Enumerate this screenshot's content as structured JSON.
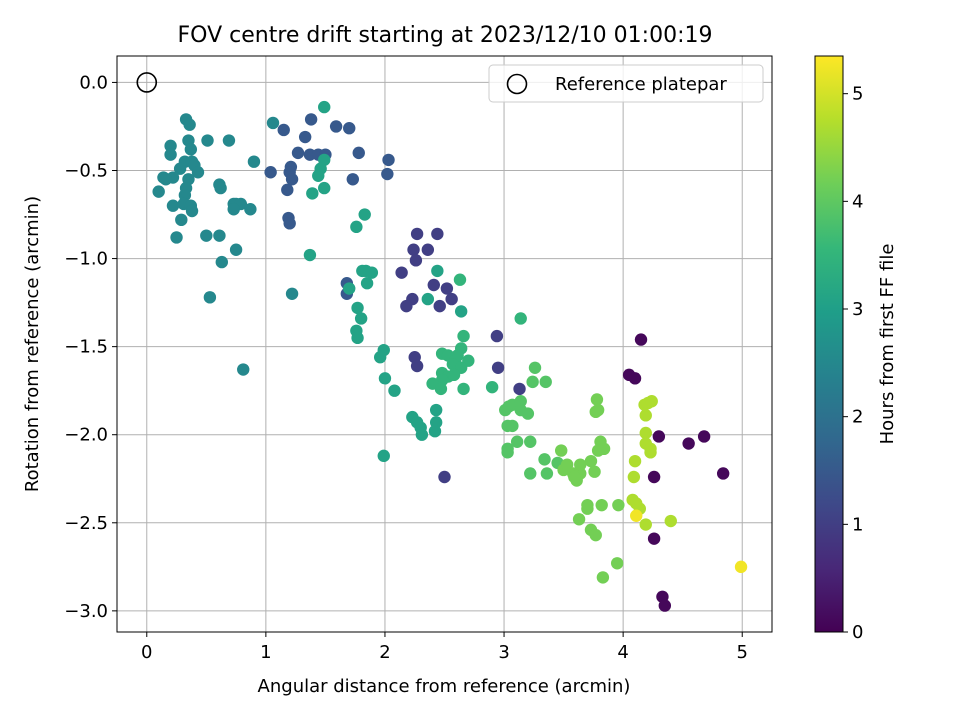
{
  "chart_data": {
    "type": "scatter",
    "title": "FOV centre drift starting at 2023/12/10 01:00:19",
    "xlabel": "Angular distance from reference (arcmin)",
    "ylabel": "Rotation from reference (arcmin)",
    "xlim": [
      -0.25,
      5.25
    ],
    "ylim": [
      -3.12,
      0.15
    ],
    "xticks": [
      0,
      1,
      2,
      3,
      4,
      5
    ],
    "xtick_labels": [
      "0",
      "1",
      "2",
      "3",
      "4",
      "5"
    ],
    "yticks": [
      0.0,
      -0.5,
      -1.0,
      -1.5,
      -2.0,
      -2.5,
      -3.0
    ],
    "ytick_labels": [
      "0.0",
      "−0.5",
      "−1.0",
      "−1.5",
      "−2.0",
      "−2.5",
      "−3.0"
    ],
    "grid": true,
    "legend": {
      "position": "top-right",
      "entries": [
        "Reference platepar"
      ]
    },
    "reference_point": {
      "x": 0,
      "y": 0,
      "label": "Reference platepar"
    },
    "colorbar": {
      "label": "Hours from first FF file",
      "range": [
        0,
        5.35
      ],
      "ticks": [
        0,
        1,
        2,
        3,
        4,
        5
      ],
      "tick_labels": [
        "0",
        "1",
        "2",
        "3",
        "4",
        "5"
      ],
      "colormap": "viridis",
      "stops": [
        "#440154",
        "#482878",
        "#3e4989",
        "#31688e",
        "#26828e",
        "#1f9e89",
        "#35b779",
        "#6ece58",
        "#b5de2b",
        "#fde725"
      ]
    },
    "points": [
      [
        4.15,
        -1.46,
        0.1
      ],
      [
        4.05,
        -1.66,
        0.1
      ],
      [
        4.1,
        -1.68,
        0.1
      ],
      [
        4.3,
        -2.01,
        0.1
      ],
      [
        4.55,
        -2.05,
        0.1
      ],
      [
        4.68,
        -2.01,
        0.1
      ],
      [
        4.84,
        -2.22,
        0.1
      ],
      [
        4.26,
        -2.24,
        0.1
      ],
      [
        4.26,
        -2.59,
        0.1
      ],
      [
        4.33,
        -2.92,
        0.1
      ],
      [
        4.35,
        -2.97,
        0.1
      ],
      [
        2.94,
        -1.44,
        1.0
      ],
      [
        2.95,
        -1.62,
        1.0
      ],
      [
        3.13,
        -1.74,
        1.0
      ],
      [
        2.27,
        -0.86,
        1.0
      ],
      [
        2.44,
        -0.86,
        1.0
      ],
      [
        2.24,
        -0.95,
        1.0
      ],
      [
        2.36,
        -0.95,
        1.0
      ],
      [
        2.26,
        -1.01,
        1.0
      ],
      [
        2.14,
        -1.08,
        1.0
      ],
      [
        2.41,
        -1.15,
        1.0
      ],
      [
        2.52,
        -1.17,
        1.0
      ],
      [
        2.56,
        -1.23,
        1.0
      ],
      [
        2.23,
        -1.23,
        1.0
      ],
      [
        2.18,
        -1.27,
        1.0
      ],
      [
        2.46,
        -1.27,
        1.0
      ],
      [
        2.25,
        -1.56,
        1.0
      ],
      [
        2.27,
        -1.61,
        1.0
      ],
      [
        2.5,
        -2.24,
        1.0
      ],
      [
        1.38,
        -0.21,
        1.5
      ],
      [
        1.15,
        -0.27,
        1.5
      ],
      [
        1.59,
        -0.25,
        1.5
      ],
      [
        1.33,
        -0.31,
        1.5
      ],
      [
        1.7,
        -0.26,
        1.5
      ],
      [
        1.27,
        -0.4,
        1.5
      ],
      [
        1.37,
        -0.41,
        1.5
      ],
      [
        1.44,
        -0.41,
        1.5
      ],
      [
        1.5,
        -0.41,
        1.5
      ],
      [
        1.78,
        -0.4,
        1.5
      ],
      [
        2.03,
        -0.44,
        1.5
      ],
      [
        1.21,
        -0.48,
        1.5
      ],
      [
        1.2,
        -0.51,
        1.5
      ],
      [
        1.22,
        -0.55,
        1.5
      ],
      [
        1.04,
        -0.51,
        1.5
      ],
      [
        2.02,
        -0.52,
        1.5
      ],
      [
        1.73,
        -0.55,
        1.5
      ],
      [
        1.18,
        -0.61,
        1.5
      ],
      [
        1.19,
        -0.77,
        1.5
      ],
      [
        1.2,
        -0.8,
        1.5
      ],
      [
        1.68,
        -1.14,
        1.5
      ],
      [
        1.68,
        -1.2,
        1.5
      ],
      [
        0.2,
        -0.36,
        2.5
      ],
      [
        0.2,
        -0.41,
        2.5
      ],
      [
        0.33,
        -0.21,
        2.5
      ],
      [
        0.36,
        -0.24,
        2.5
      ],
      [
        0.51,
        -0.33,
        2.5
      ],
      [
        0.35,
        -0.33,
        2.5
      ],
      [
        0.37,
        -0.38,
        2.5
      ],
      [
        0.32,
        -0.45,
        2.5
      ],
      [
        0.38,
        -0.45,
        2.5
      ],
      [
        0.4,
        -0.47,
        2.5
      ],
      [
        0.28,
        -0.49,
        2.5
      ],
      [
        0.43,
        -0.51,
        2.5
      ],
      [
        0.22,
        -0.54,
        2.5
      ],
      [
        0.14,
        -0.54,
        2.5
      ],
      [
        0.16,
        -0.55,
        2.5
      ],
      [
        0.35,
        -0.55,
        2.5
      ],
      [
        0.33,
        -0.6,
        2.5
      ],
      [
        0.61,
        -0.58,
        2.5
      ],
      [
        0.62,
        -0.6,
        2.5
      ],
      [
        0.1,
        -0.62,
        2.5
      ],
      [
        0.32,
        -0.64,
        2.5
      ],
      [
        0.31,
        -0.69,
        2.5
      ],
      [
        0.22,
        -0.7,
        2.5
      ],
      [
        0.37,
        -0.7,
        2.5
      ],
      [
        0.38,
        -0.73,
        2.5
      ],
      [
        0.29,
        -0.78,
        2.5
      ],
      [
        0.25,
        -0.88,
        2.5
      ],
      [
        0.5,
        -0.87,
        2.5
      ],
      [
        0.61,
        -0.87,
        2.5
      ],
      [
        0.73,
        -0.69,
        2.5
      ],
      [
        0.75,
        -0.69,
        2.5
      ],
      [
        0.79,
        -0.69,
        2.5
      ],
      [
        0.73,
        -0.72,
        2.5
      ],
      [
        0.87,
        -0.72,
        2.5
      ],
      [
        0.9,
        -0.45,
        2.5
      ],
      [
        0.75,
        -0.95,
        2.5
      ],
      [
        0.63,
        -1.02,
        2.5
      ],
      [
        0.53,
        -1.22,
        2.5
      ],
      [
        0.81,
        -1.63,
        2.5
      ],
      [
        1.22,
        -1.2,
        2.5
      ],
      [
        0.69,
        -0.33,
        2.5
      ],
      [
        1.06,
        -0.23,
        2.5
      ],
      [
        1.49,
        -0.14,
        3.1
      ],
      [
        1.49,
        -0.44,
        3.1
      ],
      [
        1.46,
        -0.49,
        3.1
      ],
      [
        1.44,
        -0.53,
        3.1
      ],
      [
        1.49,
        -0.6,
        3.1
      ],
      [
        1.39,
        -0.63,
        3.1
      ],
      [
        1.37,
        -0.98,
        3.1
      ],
      [
        1.83,
        -0.75,
        3.1
      ],
      [
        1.76,
        -0.82,
        3.1
      ],
      [
        1.7,
        -1.17,
        3.1
      ],
      [
        1.77,
        -1.28,
        3.1
      ],
      [
        1.8,
        -1.34,
        3.1
      ],
      [
        1.76,
        -1.41,
        3.1
      ],
      [
        1.77,
        -1.45,
        3.1
      ],
      [
        1.81,
        -1.07,
        3.1
      ],
      [
        1.84,
        -1.07,
        3.1
      ],
      [
        1.89,
        -1.08,
        3.1
      ],
      [
        1.85,
        -1.14,
        3.1
      ],
      [
        1.99,
        -1.52,
        3.1
      ],
      [
        1.96,
        -1.56,
        3.1
      ],
      [
        2.0,
        -1.68,
        3.1
      ],
      [
        2.08,
        -1.75,
        3.1
      ],
      [
        1.99,
        -2.12,
        3.1
      ],
      [
        2.36,
        -1.23,
        3.1
      ],
      [
        2.44,
        -1.07,
        3.1
      ],
      [
        2.23,
        -1.9,
        3.1
      ],
      [
        2.27,
        -1.93,
        3.1
      ],
      [
        2.3,
        -1.96,
        3.1
      ],
      [
        2.31,
        -2.0,
        3.1
      ],
      [
        2.43,
        -1.86,
        3.1
      ],
      [
        2.43,
        -1.93,
        3.1
      ],
      [
        2.42,
        -1.98,
        3.1
      ],
      [
        2.64,
        -1.3,
        3.1
      ],
      [
        2.63,
        -1.12,
        3.5
      ],
      [
        2.66,
        -1.44,
        3.5
      ],
      [
        2.64,
        -1.51,
        3.5
      ],
      [
        2.61,
        -1.55,
        3.5
      ],
      [
        2.48,
        -1.54,
        3.5
      ],
      [
        2.53,
        -1.55,
        3.5
      ],
      [
        2.59,
        -1.58,
        3.5
      ],
      [
        2.7,
        -1.58,
        3.5
      ],
      [
        2.57,
        -1.6,
        3.5
      ],
      [
        2.64,
        -1.62,
        3.5
      ],
      [
        2.48,
        -1.65,
        3.5
      ],
      [
        2.53,
        -1.67,
        3.5
      ],
      [
        2.48,
        -1.69,
        3.5
      ],
      [
        2.58,
        -1.66,
        3.5
      ],
      [
        2.4,
        -1.71,
        3.5
      ],
      [
        2.47,
        -1.74,
        3.5
      ],
      [
        2.66,
        -1.74,
        3.5
      ],
      [
        3.14,
        -1.34,
        3.5
      ],
      [
        2.9,
        -1.73,
        3.5
      ],
      [
        3.01,
        -1.86,
        3.9
      ],
      [
        3.04,
        -1.84,
        3.9
      ],
      [
        3.07,
        -1.83,
        3.9
      ],
      [
        3.14,
        -1.81,
        3.9
      ],
      [
        3.14,
        -1.86,
        3.9
      ],
      [
        3.2,
        -1.88,
        3.9
      ],
      [
        3.03,
        -1.95,
        3.9
      ],
      [
        3.07,
        -1.95,
        3.9
      ],
      [
        3.11,
        -2.04,
        3.9
      ],
      [
        3.03,
        -2.08,
        3.9
      ],
      [
        3.03,
        -2.1,
        3.9
      ],
      [
        3.22,
        -2.04,
        3.9
      ],
      [
        3.22,
        -2.22,
        3.9
      ],
      [
        3.26,
        -1.62,
        3.9
      ],
      [
        3.24,
        -1.7,
        3.9
      ],
      [
        3.35,
        -1.7,
        3.9
      ],
      [
        3.34,
        -2.14,
        3.9
      ],
      [
        3.36,
        -2.22,
        3.9
      ],
      [
        3.45,
        -2.16,
        3.9
      ],
      [
        3.48,
        -2.09,
        4.2
      ],
      [
        3.5,
        -2.2,
        4.2
      ],
      [
        3.53,
        -2.17,
        4.2
      ],
      [
        3.58,
        -2.22,
        4.2
      ],
      [
        3.61,
        -2.26,
        4.2
      ],
      [
        3.64,
        -2.22,
        4.2
      ],
      [
        3.59,
        -2.24,
        4.2
      ],
      [
        3.64,
        -2.17,
        4.2
      ],
      [
        3.63,
        -2.48,
        4.2
      ],
      [
        3.7,
        -2.42,
        4.2
      ],
      [
        3.7,
        -2.4,
        4.2
      ],
      [
        3.78,
        -1.8,
        4.2
      ],
      [
        3.77,
        -1.87,
        4.2
      ],
      [
        3.79,
        -1.86,
        4.2
      ],
      [
        3.73,
        -2.15,
        4.2
      ],
      [
        3.76,
        -2.21,
        4.2
      ],
      [
        3.81,
        -2.04,
        4.2
      ],
      [
        3.79,
        -2.09,
        4.2
      ],
      [
        3.84,
        -2.08,
        4.2
      ],
      [
        3.73,
        -2.54,
        4.2
      ],
      [
        3.77,
        -2.57,
        4.2
      ],
      [
        3.82,
        -2.4,
        4.2
      ],
      [
        3.83,
        -2.81,
        4.2
      ],
      [
        3.95,
        -2.73,
        4.2
      ],
      [
        3.96,
        -2.4,
        4.2
      ],
      [
        4.08,
        -2.37,
        4.7
      ],
      [
        4.11,
        -2.39,
        4.7
      ],
      [
        4.18,
        -1.83,
        4.7
      ],
      [
        4.21,
        -1.82,
        4.7
      ],
      [
        4.24,
        -1.81,
        4.7
      ],
      [
        4.19,
        -1.89,
        4.7
      ],
      [
        4.19,
        -1.99,
        4.7
      ],
      [
        4.19,
        -2.05,
        4.7
      ],
      [
        4.23,
        -2.08,
        4.7
      ],
      [
        4.23,
        -2.1,
        4.7
      ],
      [
        4.1,
        -2.15,
        4.7
      ],
      [
        4.09,
        -2.24,
        4.7
      ],
      [
        4.14,
        -2.42,
        4.7
      ],
      [
        4.19,
        -2.51,
        4.7
      ],
      [
        4.4,
        -2.49,
        4.7
      ],
      [
        4.11,
        -2.46,
        5.25
      ],
      [
        4.99,
        -2.75,
        5.25
      ]
    ]
  }
}
